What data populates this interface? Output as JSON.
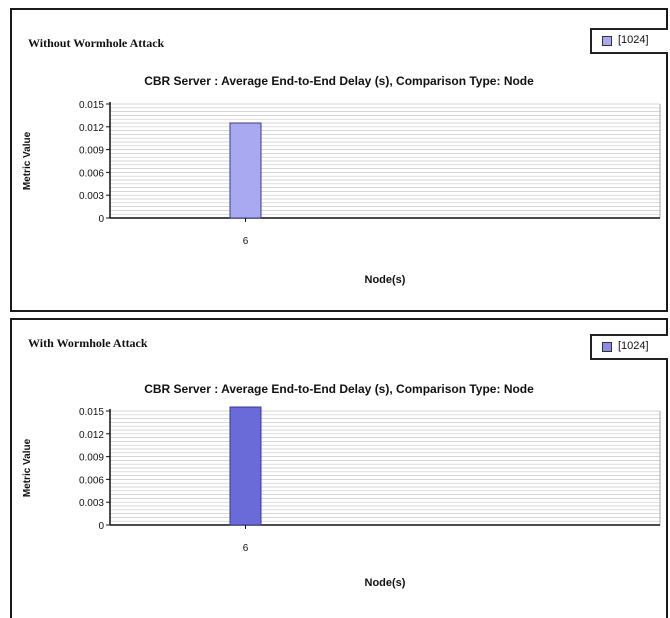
{
  "panels": [
    {
      "caption": "Without Wormhole Attack",
      "legend_label": "[1024]"
    },
    {
      "caption": "With Wormhole Attack",
      "legend_label": "[1024]"
    }
  ],
  "chart_data": [
    {
      "type": "bar",
      "title": "CBR Server :  Average End-to-End Delay (s), Comparison Type: Node",
      "xlabel": "Node(s)",
      "ylabel": "Metric Value",
      "categories": [
        "6"
      ],
      "series": [
        {
          "name": "[1024]",
          "values": [
            0.0125
          ],
          "color": "#a9a9f2"
        }
      ],
      "ylim": [
        0,
        0.015
      ],
      "yticks": [
        "0",
        "0.003",
        "0.006",
        "0.009",
        "0.012",
        "0.015"
      ],
      "grid": true,
      "legend": "top-right"
    },
    {
      "type": "bar",
      "title": "CBR Server :  Average End-to-End Delay (s), Comparison Type: Node",
      "xlabel": "Node(s)",
      "ylabel": "Metric Value",
      "categories": [
        "6"
      ],
      "series": [
        {
          "name": "[1024]",
          "values": [
            0.016
          ],
          "color": "#6a6ad8"
        }
      ],
      "ylim": [
        0,
        0.015
      ],
      "yticks": [
        "0",
        "0.003",
        "0.006",
        "0.009",
        "0.012",
        "0.015"
      ],
      "grid": true,
      "legend": "top-right"
    }
  ]
}
